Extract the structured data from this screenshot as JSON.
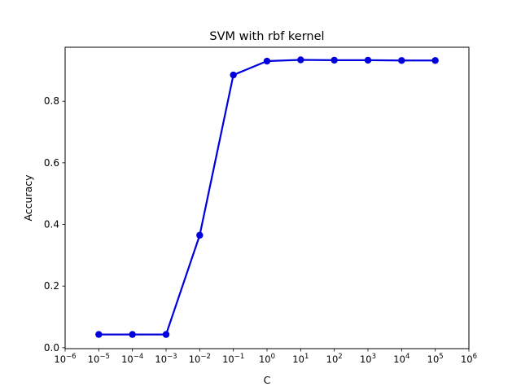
{
  "chart_data": {
    "type": "line",
    "title": "SVM with rbf kernel",
    "xlabel": "C",
    "ylabel": "Accuracy",
    "x_scale": "log",
    "xlim": [
      1e-06,
      1000000.0
    ],
    "ylim": [
      -0.003,
      0.975
    ],
    "grid": false,
    "x_ticks": [
      {
        "base": "10",
        "exp": "−6",
        "value": 1e-06
      },
      {
        "base": "10",
        "exp": "−5",
        "value": 1e-05
      },
      {
        "base": "10",
        "exp": "−4",
        "value": 0.0001
      },
      {
        "base": "10",
        "exp": "−3",
        "value": 0.001
      },
      {
        "base": "10",
        "exp": "−2",
        "value": 0.01
      },
      {
        "base": "10",
        "exp": "−1",
        "value": 0.1
      },
      {
        "base": "10",
        "exp": "0",
        "value": 1
      },
      {
        "base": "10",
        "exp": "1",
        "value": 10
      },
      {
        "base": "10",
        "exp": "2",
        "value": 100
      },
      {
        "base": "10",
        "exp": "3",
        "value": 1000
      },
      {
        "base": "10",
        "exp": "4",
        "value": 10000
      },
      {
        "base": "10",
        "exp": "5",
        "value": 100000
      },
      {
        "base": "10",
        "exp": "6",
        "value": 1000000
      }
    ],
    "y_ticks": [
      {
        "label": "0.0",
        "value": 0.0
      },
      {
        "label": "0.2",
        "value": 0.2
      },
      {
        "label": "0.4",
        "value": 0.4
      },
      {
        "label": "0.6",
        "value": 0.6
      },
      {
        "label": "0.8",
        "value": 0.8
      }
    ],
    "series": [
      {
        "color": "#0000dd",
        "x": [
          1e-05,
          0.0001,
          0.001,
          0.01,
          0.1,
          1,
          10,
          100,
          1000,
          10000,
          100000
        ],
        "y": [
          0.043,
          0.043,
          0.043,
          0.365,
          0.885,
          0.93,
          0.934,
          0.933,
          0.933,
          0.932,
          0.932
        ]
      }
    ]
  }
}
